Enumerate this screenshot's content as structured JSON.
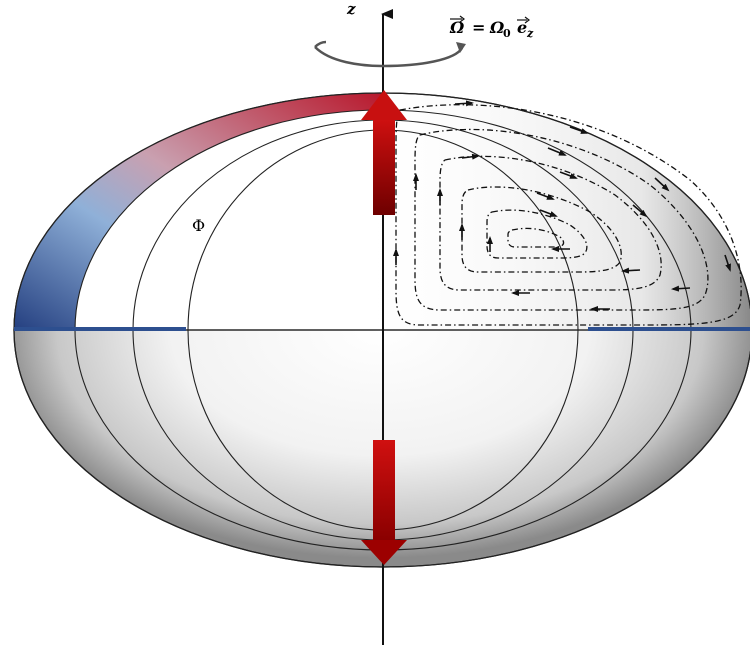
{
  "axis": {
    "label": "z"
  },
  "rotation": {
    "omega_symbol": "Ω",
    "equals": "=",
    "omega0": "Ω",
    "omega0_sub": "0",
    "unit_vector": "e",
    "unit_vector_sub": "z"
  },
  "potential": {
    "label": "Φ"
  },
  "colors": {
    "flow_red": "#c00000",
    "flow_red_dark": "#7a0000",
    "band_blue": "#2d4f8f",
    "band_red": "#c8283a",
    "outline": "#222222",
    "axis": "#111111"
  }
}
